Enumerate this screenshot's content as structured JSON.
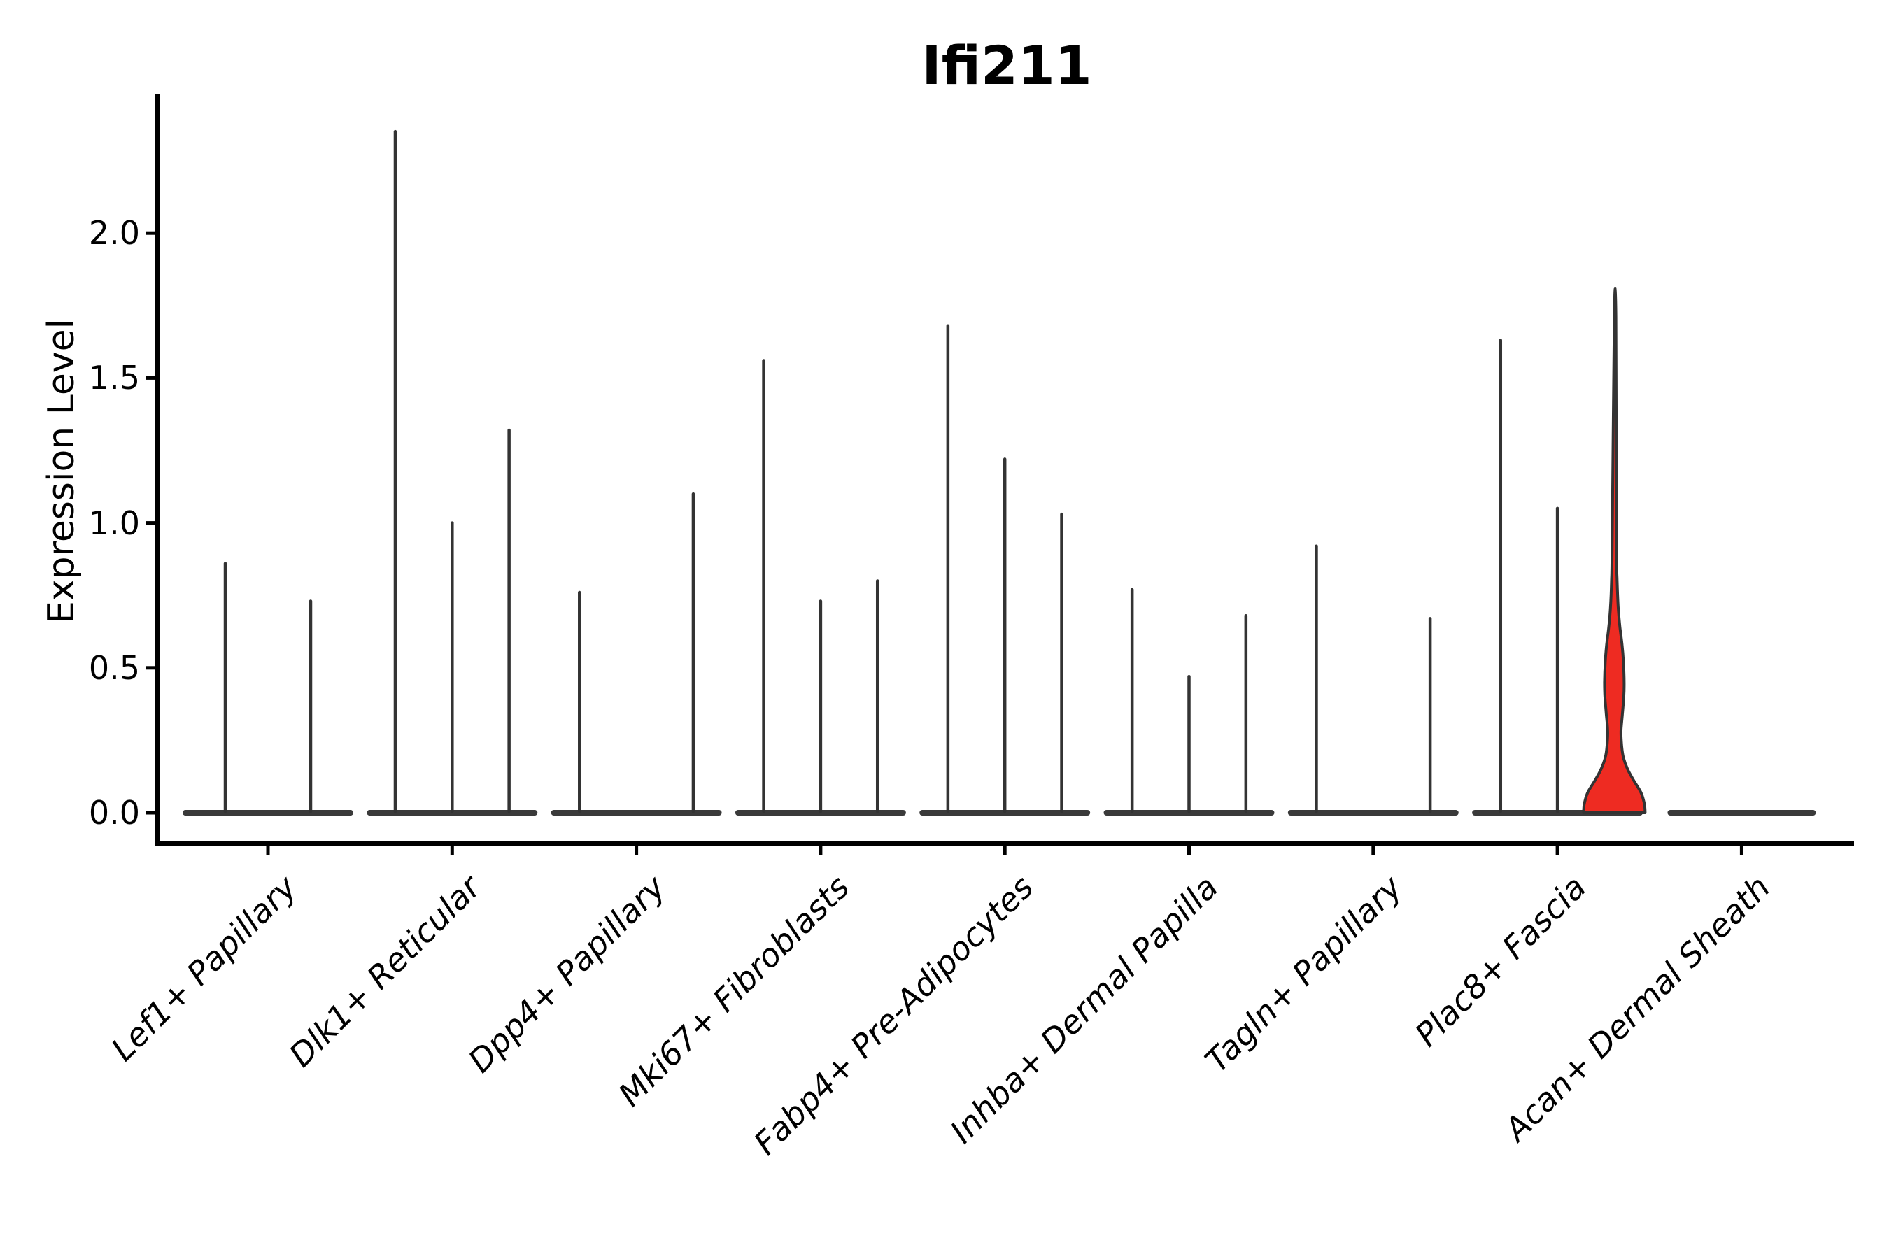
{
  "title": "Ifi211",
  "ylabel": "Expression Level",
  "chart_data": {
    "type": "violin",
    "title": "Ifi211",
    "xlabel": "",
    "ylabel": "Expression Level",
    "ylim": [
      -0.12,
      2.47
    ],
    "ytick_values": [
      0.0,
      0.5,
      1.0,
      1.5,
      2.0
    ],
    "ytick_labels": [
      "0.0",
      "0.5",
      "1.0",
      "1.5",
      "2.0"
    ],
    "grid": false,
    "legend": "none",
    "description": "Spike-like violins (near-zero density body with thin tail up to the max expression value); one violin highlighted in red with a wide density blob near zero.",
    "categories": [
      "Lef1+ Papillary",
      "Dlk1+ Reticular",
      "Dpp4+ Papillary",
      "Mki67+ Fibroblasts",
      "Fabp4+ Pre-Adipocytes",
      "Inhba+ Dermal Papilla",
      "Tagln+ Papillary",
      "Plac8+ Fascia",
      "Acan+ Dermal Sheath"
    ],
    "groups": [
      {
        "label": "Lef1+ Papillary",
        "violins": [
          {
            "max": 0.86
          },
          {
            "max": 0.73
          }
        ]
      },
      {
        "label": "Dlk1+ Reticular",
        "violins": [
          {
            "max": 2.35
          },
          {
            "max": 1.0
          },
          {
            "max": 1.32
          }
        ]
      },
      {
        "label": "Dpp4+ Papillary",
        "violins": [
          {
            "max": 0.76
          },
          {
            "max": 0.0
          },
          {
            "max": 1.1
          }
        ]
      },
      {
        "label": "Mki67+ Fibroblasts",
        "violins": [
          {
            "max": 1.56
          },
          {
            "max": 0.73
          },
          {
            "max": 0.8
          }
        ]
      },
      {
        "label": "Fabp4+ Pre-Adipocytes",
        "violins": [
          {
            "max": 1.68
          },
          {
            "max": 1.22
          },
          {
            "max": 1.03
          }
        ]
      },
      {
        "label": "Inhba+ Dermal Papilla",
        "violins": [
          {
            "max": 0.77
          },
          {
            "max": 0.47
          },
          {
            "max": 0.68
          }
        ]
      },
      {
        "label": "Tagln+ Papillary",
        "violins": [
          {
            "max": 0.92
          },
          {
            "max": 0.0
          },
          {
            "max": 0.67
          }
        ]
      },
      {
        "label": "Plac8+ Fascia",
        "violins": [
          {
            "max": 1.63
          },
          {
            "max": 1.05
          },
          {
            "max": 1.71,
            "highlight": true
          }
        ]
      },
      {
        "label": "Acan+ Dermal Sheath",
        "violins": [
          {
            "max": 0.0,
            "wide": true
          }
        ]
      }
    ],
    "highlight_profile": [
      [
        0.0,
        44
      ],
      [
        0.03,
        43
      ],
      [
        0.07,
        38
      ],
      [
        0.11,
        28
      ],
      [
        0.15,
        19
      ],
      [
        0.19,
        13
      ],
      [
        0.23,
        10.5
      ],
      [
        0.28,
        9.5
      ],
      [
        0.34,
        11.5
      ],
      [
        0.4,
        13.5
      ],
      [
        0.45,
        14
      ],
      [
        0.52,
        13
      ],
      [
        0.58,
        11
      ],
      [
        0.64,
        8
      ],
      [
        0.71,
        5.5
      ],
      [
        0.8,
        4
      ],
      [
        0.95,
        3
      ],
      [
        1.71,
        2.2
      ]
    ],
    "colors": {
      "violin_line": "#333333",
      "baseline": "#3a3a3a",
      "highlight_fill": "#EE2B22",
      "axis": "#000000",
      "text": "#000000",
      "background": "#ffffff"
    }
  }
}
